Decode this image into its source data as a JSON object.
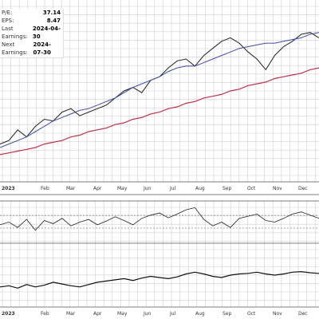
{
  "info": [
    {
      "label": "P/E:",
      "value": "37.14"
    },
    {
      "label": "EPS:",
      "value": "8.47"
    },
    {
      "label": "Last Earnings:",
      "value": "2024-04-30"
    },
    {
      "label": "Next Earnings:",
      "value": "2024-07-30"
    }
  ],
  "chart_data": {
    "type": "line",
    "x_ticks": [
      "2023",
      "Feb",
      "Mar",
      "Apr",
      "May",
      "Jun",
      "Jul",
      "Aug",
      "Sep",
      "Oct",
      "Nov",
      "Dec"
    ],
    "grid": true,
    "series": [
      {
        "values": [
          20,
          22,
          28,
          24,
          30,
          34,
          33,
          38,
          40,
          36,
          38,
          40,
          42,
          46,
          50,
          52,
          49,
          56,
          58,
          63,
          67,
          68,
          64,
          70,
          74,
          78,
          80,
          77,
          72,
          68,
          62,
          70,
          75,
          78,
          82,
          83,
          80
        ]
      },
      {
        "values": [
          18,
          20,
          22,
          24,
          27,
          30,
          33,
          35,
          37,
          39,
          40,
          42,
          44,
          46,
          49,
          52,
          54,
          56,
          58,
          61,
          63,
          64,
          64,
          66,
          68,
          70,
          72,
          74,
          75,
          76,
          77,
          77,
          78,
          79,
          80,
          82,
          83
        ]
      },
      {
        "values": [
          14,
          15,
          16,
          17,
          18,
          20,
          21,
          22,
          24,
          25,
          27,
          28,
          29,
          31,
          32,
          34,
          35,
          37,
          38,
          40,
          41,
          43,
          44,
          46,
          47,
          48,
          50,
          51,
          53,
          54,
          55,
          57,
          58,
          59,
          60,
          62,
          63
        ]
      },
      {
        "values": [
          50,
          55,
          45,
          60,
          40,
          58,
          52,
          62,
          48,
          55,
          60,
          50,
          57,
          65,
          58,
          50,
          62,
          68,
          72,
          63,
          70,
          78,
          82,
          60,
          48,
          55,
          45,
          62,
          66,
          70,
          58,
          55,
          62,
          70,
          74,
          68,
          62
        ]
      },
      {
        "values": [
          30,
          32,
          28,
          34,
          30,
          33,
          38,
          35,
          32,
          30,
          34,
          38,
          40,
          42,
          44,
          41,
          45,
          48,
          46,
          44,
          47,
          52,
          55,
          52,
          48,
          46,
          50,
          52,
          53,
          55,
          52,
          50,
          52,
          55,
          56,
          54,
          53
        ]
      }
    ]
  }
}
